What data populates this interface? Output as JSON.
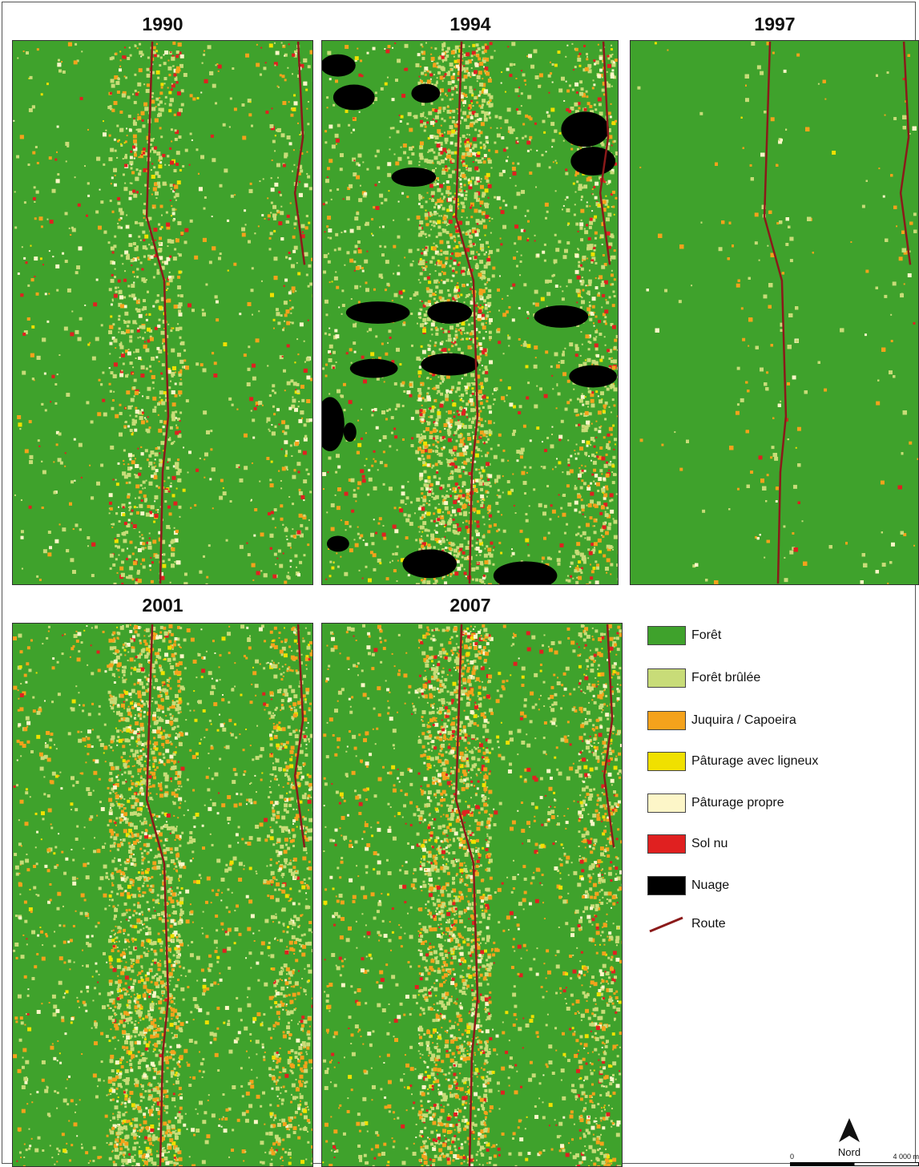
{
  "years": [
    "1990",
    "1994",
    "1997",
    "2001",
    "2007"
  ],
  "legend": [
    {
      "label": "Forêt",
      "color": "#3fa22c"
    },
    {
      "label": "Forêt brûlée",
      "color": "#c8dc78"
    },
    {
      "label": "Juquira / Capoeira",
      "color": "#f4a21c"
    },
    {
      "label": "Pâturage avec ligneux",
      "color": "#f0e000"
    },
    {
      "label": "Pâturage propre",
      "color": "#fdf6c8"
    },
    {
      "label": "Sol nu",
      "color": "#e02020"
    },
    {
      "label": "Nuage",
      "color": "#000000"
    },
    {
      "label": "Route",
      "color": "#8b1a1a"
    }
  ],
  "north_label": "Nord",
  "scale": {
    "start": "0",
    "end": "4 000 m"
  }
}
